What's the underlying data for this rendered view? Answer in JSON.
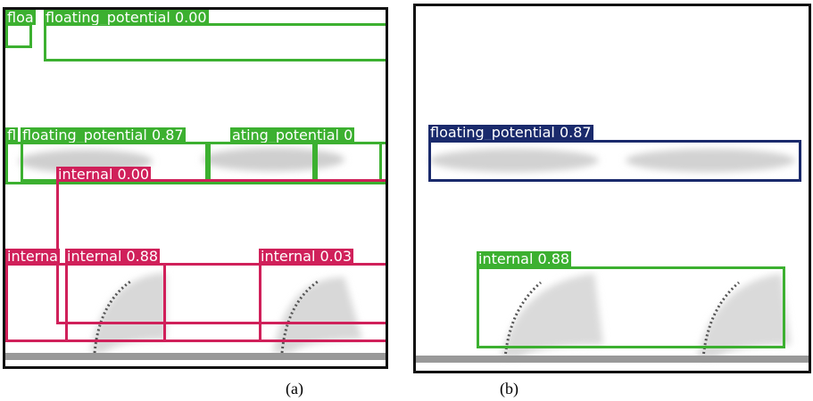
{
  "panels": [
    {
      "caption": "(a)",
      "labels": [
        "floa",
        "floating_potential 0.00",
        "fl",
        "floating_potential 0.87",
        "ating_potential 0",
        "internal 0.00",
        "interna",
        "internal 0.88",
        "internal 0.03"
      ]
    },
    {
      "caption": "(b)",
      "labels": [
        "floating_potential 0.87",
        "internal 0.88"
      ]
    }
  ]
}
